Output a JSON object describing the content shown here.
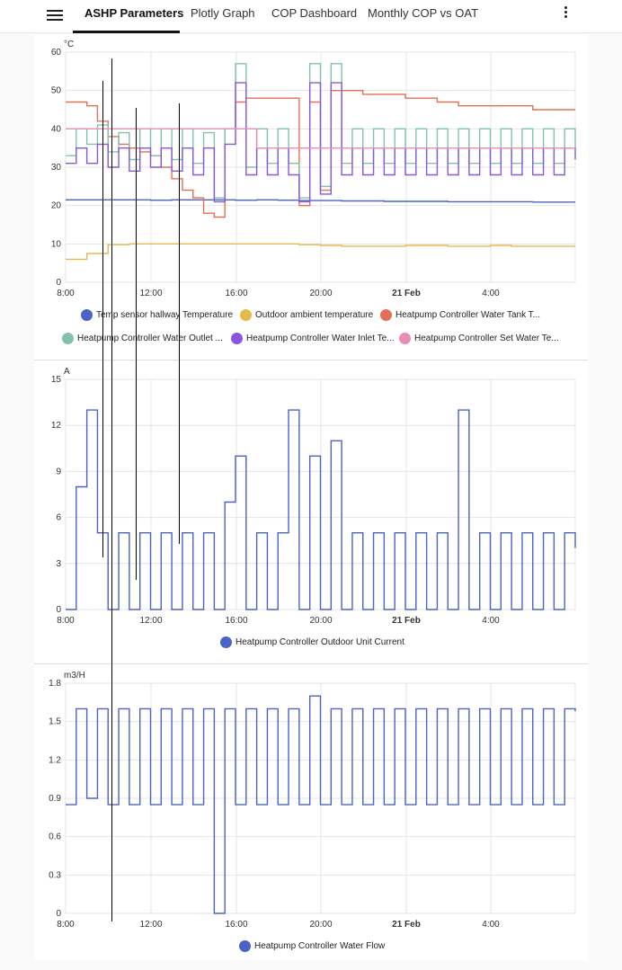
{
  "tabs": [
    {
      "label": "ASHP Parameters"
    },
    {
      "label": "Plotly Graph"
    },
    {
      "label": "COP Dashboard"
    },
    {
      "label": "Monthly COP vs OAT"
    }
  ],
  "x_ticks": [
    "8:00",
    "12:00",
    "16:00",
    "20:00",
    "21 Feb",
    "4:00"
  ],
  "chart_data": [
    {
      "type": "line",
      "unit": "°C",
      "ylim": [
        0,
        60
      ],
      "yticks": [
        0,
        10,
        20,
        30,
        40,
        50,
        60
      ],
      "x_range_hours": [
        0,
        24
      ],
      "series": [
        {
          "name": "Temp sensor hallway Temperature",
          "color": "#4a63c4",
          "step_h": 1,
          "values": [
            21.5,
            21.5,
            21.5,
            21.5,
            21.4,
            21.5,
            21.5,
            21.5,
            21.4,
            21.5,
            21.4,
            21.3,
            21.3,
            21.2,
            21.2,
            21.1,
            21.1,
            21.1,
            21,
            21,
            21,
            21,
            20.9,
            20.9,
            20.9
          ]
        },
        {
          "name": "Outdoor ambient temperature",
          "color": "#e5b94e",
          "step_h": 1,
          "values": [
            6,
            7.5,
            9.8,
            10,
            10,
            10,
            10,
            10,
            10,
            10,
            10,
            9.8,
            9.6,
            9.4,
            9.4,
            9.4,
            9.6,
            9.6,
            9.4,
            9.4,
            9.6,
            9.4,
            9.4,
            9.4,
            9.4
          ]
        },
        {
          "name": "Heatpump Controller Water Tank T...",
          "color": "#e07058",
          "step_h": 0.5,
          "values": [
            47,
            47,
            46,
            42,
            38,
            36,
            35,
            34,
            33,
            30,
            27,
            24,
            22,
            18,
            17,
            40,
            47,
            48,
            48,
            48,
            48,
            48,
            20,
            47,
            24,
            50,
            50,
            50,
            49,
            49,
            49,
            49,
            48,
            48,
            48,
            47,
            47,
            46,
            46,
            46,
            46,
            46,
            46,
            46,
            45,
            45,
            45,
            45,
            45
          ]
        },
        {
          "name": "Heatpump Controller Water Outlet ...",
          "color": "#7fc3ae",
          "step_h": 0.5,
          "values": [
            33,
            40,
            36,
            41,
            34,
            39,
            32,
            40,
            33,
            40,
            32,
            40,
            31,
            39,
            22,
            40,
            57,
            30,
            40,
            31,
            40,
            31,
            22,
            57,
            25,
            57,
            31,
            40,
            31,
            40,
            31,
            40,
            31,
            40,
            31,
            40,
            31,
            40,
            31,
            40,
            31,
            40,
            31,
            40,
            31,
            40,
            31,
            40,
            35
          ]
        },
        {
          "name": "Heatpump Controller Water Inlet Te...",
          "color": "#8b57d6",
          "step_h": 0.5,
          "values": [
            31,
            35,
            31,
            36,
            30,
            35,
            29,
            35,
            30,
            35,
            29,
            35,
            28,
            35,
            21,
            36,
            52,
            28,
            35,
            28,
            35,
            28,
            21,
            52,
            23,
            52,
            28,
            35,
            28,
            35,
            28,
            35,
            28,
            35,
            28,
            35,
            28,
            35,
            28,
            35,
            28,
            35,
            28,
            35,
            28,
            35,
            28,
            35,
            32
          ]
        },
        {
          "name": "Heatpump Controller Set Water Te...",
          "color": "#e88db3",
          "step_h": 1,
          "values": [
            40,
            40,
            40,
            40,
            40,
            40,
            40,
            40,
            40,
            35,
            35,
            35,
            35,
            35,
            35,
            35,
            35,
            35,
            35,
            35,
            35,
            35,
            35,
            35,
            35
          ]
        }
      ]
    },
    {
      "type": "line",
      "unit": "A",
      "ylim": [
        0,
        15
      ],
      "yticks": [
        0,
        3,
        6,
        9,
        12,
        15
      ],
      "x_range_hours": [
        0,
        24
      ],
      "series": [
        {
          "name": "Heatpump Controller Outdoor Unit Current",
          "color": "#4a63c4",
          "step_h": 0.5,
          "values": [
            0,
            8,
            13,
            5,
            0,
            5,
            0,
            5,
            0,
            5,
            0,
            5,
            0,
            5,
            0,
            7,
            10,
            0,
            5,
            0,
            5,
            13,
            0,
            10,
            0,
            11,
            0,
            5,
            0,
            5,
            0,
            5,
            0,
            5,
            0,
            5,
            0,
            13,
            0,
            5,
            0,
            5,
            0,
            5,
            0,
            5,
            0,
            5,
            4
          ]
        }
      ]
    },
    {
      "type": "line",
      "unit": "m3/H",
      "ylim": [
        0,
        1.8
      ],
      "yticks": [
        0,
        0.3,
        0.6,
        0.9,
        1.2,
        1.5,
        1.8
      ],
      "x_range_hours": [
        0,
        24
      ],
      "series": [
        {
          "name": "Heatpump Controller Water Flow",
          "color": "#4a63c4",
          "step_h": 0.5,
          "values": [
            0.85,
            1.6,
            0.9,
            1.6,
            0.85,
            1.6,
            0.85,
            1.6,
            0.85,
            1.6,
            0.85,
            1.6,
            0.85,
            1.6,
            0,
            1.6,
            0.85,
            1.6,
            0.85,
            1.6,
            0.85,
            1.6,
            0.85,
            1.7,
            0.85,
            1.6,
            0.85,
            1.6,
            0.85,
            1.6,
            0.85,
            1.6,
            0.85,
            1.6,
            0.85,
            1.6,
            0.85,
            1.6,
            0.85,
            1.6,
            0.85,
            1.6,
            0.85,
            1.6,
            0.85,
            1.6,
            0.85,
            1.6,
            1.58
          ]
        }
      ]
    }
  ]
}
